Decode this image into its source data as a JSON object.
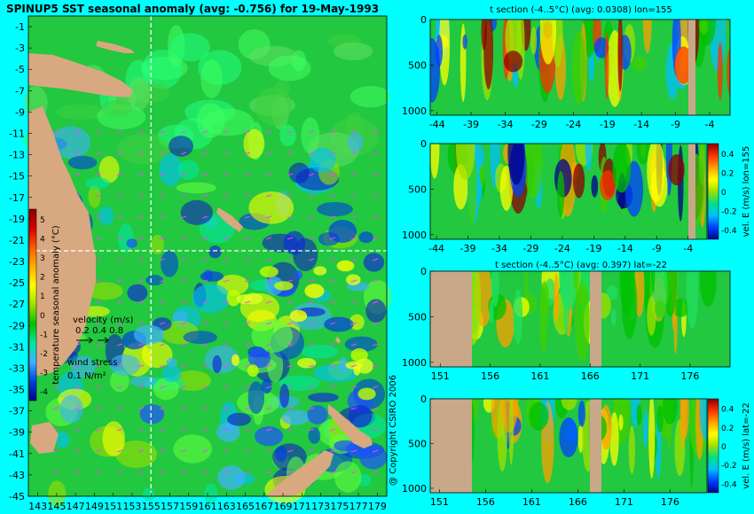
{
  "main_title": "SPINUP5 SST seasonal anomaly (avg: -0.756) for 19-May-1993",
  "copyright": "@ Copyright CSIRO 2006",
  "map": {
    "xticks": [
      "143",
      "145",
      "147",
      "149",
      "151",
      "153",
      "155",
      "157",
      "159",
      "161",
      "163",
      "165",
      "167",
      "169",
      "171",
      "173",
      "175",
      "177",
      "179"
    ],
    "yticks": [
      "-1",
      "-3",
      "-5",
      "-7",
      "-9",
      "-11",
      "-13",
      "-15",
      "-17",
      "-19",
      "-21",
      "-23",
      "-25",
      "-27",
      "-29",
      "-31",
      "-33",
      "-35",
      "-37",
      "-39",
      "-41",
      "-43",
      "-45"
    ],
    "colorbar": {
      "label": "temperature seasonal anomaly (°C)",
      "ticks": [
        "5",
        "4",
        "3",
        "2",
        "1",
        "0",
        "-1",
        "-2",
        "-3",
        "-4"
      ],
      "colors": [
        "#8b0000",
        "#d40000",
        "#ff5a00",
        "#ffb000",
        "#ffff00",
        "#9be000",
        "#00c000",
        "#00e8a0",
        "#40b0ff",
        "#0040e0",
        "#00008b"
      ]
    },
    "velocity_label": "velocity (m/s)",
    "velocity_scale": "0.2 0.4 0.8",
    "wind_label": "wind stress",
    "wind_scale": "0.1 N/m²",
    "section_lines": {
      "lon": 155,
      "lat": -22
    }
  },
  "chart_data": [
    {
      "type": "heatmap",
      "title": "SPINUP5 SST seasonal anomaly (avg: -0.756) for 19-May-1993",
      "x_ticks": [
        143,
        145,
        147,
        149,
        151,
        153,
        155,
        157,
        159,
        161,
        163,
        165,
        167,
        169,
        171,
        173,
        175,
        177,
        179
      ],
      "y_ticks": [
        -1,
        -3,
        -5,
        -7,
        -9,
        -11,
        -13,
        -15,
        -17,
        -19,
        -21,
        -23,
        -25,
        -27,
        -29,
        -31,
        -33,
        -35,
        -37,
        -39,
        -41,
        -43,
        -45
      ],
      "xlim": [
        142,
        180
      ],
      "ylim": [
        -45,
        0
      ],
      "colorbar_range": [
        -4,
        5
      ],
      "colorbar_label": "temperature seasonal anomaly (°C)"
    },
    {
      "type": "heatmap",
      "title": "t section (-4..5°C) (avg: 0.0308) lon=155",
      "x_ticks": [
        -44,
        -39,
        -34,
        -29,
        -24,
        -19,
        -14,
        -9,
        -4
      ],
      "y_ticks": [
        0,
        500,
        1000
      ],
      "xlim": [
        -45,
        -1
      ],
      "ylim": [
        1050,
        0
      ]
    },
    {
      "type": "heatmap",
      "title": "",
      "x_ticks": [
        -44,
        -39,
        -34,
        -29,
        -24,
        -19,
        -14,
        -9,
        -4
      ],
      "y_ticks": [
        0,
        500,
        1000
      ],
      "xlim": [
        -45,
        -1
      ],
      "ylim": [
        1050,
        0
      ],
      "colorbar_range": [
        -0.4,
        0.4
      ],
      "colorbar_ticks": [
        "0.4",
        "0.2",
        "0",
        "-0.2",
        "-0.4"
      ],
      "colorbar_label": "vel. E (m/s) lon=155"
    },
    {
      "type": "heatmap",
      "title": "t section (-4..5°C) (avg: 0.397) lat=-22",
      "x_ticks": [
        151,
        156,
        161,
        166,
        171,
        176
      ],
      "y_ticks": [
        0,
        500,
        1000
      ],
      "xlim": [
        150,
        180
      ],
      "ylim": [
        1050,
        0
      ]
    },
    {
      "type": "heatmap",
      "title": "",
      "x_ticks": [
        151,
        156,
        161,
        166,
        171,
        176
      ],
      "y_ticks": [
        0,
        500,
        1000
      ],
      "xlim": [
        150,
        180
      ],
      "ylim": [
        1050,
        0
      ],
      "colorbar_range": [
        -0.4,
        0.4
      ],
      "colorbar_ticks": [
        "0.4",
        "0.2",
        "0",
        "-0.2",
        "-0.4"
      ],
      "colorbar_label": "vel. E (m/s) lat=-22"
    }
  ],
  "panels": {
    "p1": {
      "title": "t section (-4..5°C) (avg: 0.0308) lon=155"
    },
    "p3": {
      "title": "t section (-4..5°C) (avg: 0.397) lat=-22"
    },
    "p2cb": {
      "label": "vel. E (m/s) lon=155",
      "ticks": [
        "0.4",
        "0.2",
        "0",
        "-0.2",
        "-0.4"
      ]
    },
    "p4cb": {
      "label": "vel. E (m/s) lat=-22",
      "ticks": [
        "0.4",
        "0.2",
        "0",
        "-0.2",
        "-0.4"
      ]
    },
    "vel_colors": [
      "#00008b",
      "#0040ff",
      "#00c0ff",
      "#00e080",
      "#a0e000",
      "#ffff00",
      "#ffa000",
      "#ff3000",
      "#8b0000"
    ]
  },
  "colors": {
    "land": "#d8a880",
    "ocean": "#22c840",
    "background": "#00ffff"
  }
}
